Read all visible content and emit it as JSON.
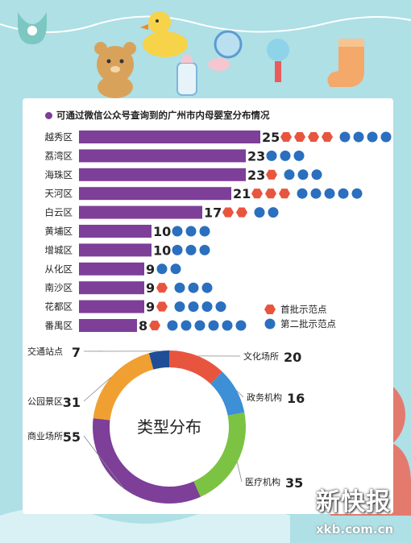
{
  "chart_data": [
    {
      "type": "bar",
      "orientation": "horizontal",
      "title": "可通过微信公众号查询到的广州市内母婴室分布情况",
      "categories": [
        "越秀区",
        "荔湾区",
        "海珠区",
        "天河区",
        "白云区",
        "黄埔区",
        "增城区",
        "从化区",
        "南沙区",
        "花都区",
        "番禺区"
      ],
      "values": [
        25,
        23,
        23,
        21,
        17,
        10,
        10,
        9,
        9,
        9,
        8
      ],
      "bar_color": "#7d3f98",
      "markers": [
        {
          "first": 4,
          "second": 4
        },
        {
          "first": 0,
          "second": 3
        },
        {
          "first": 1,
          "second": 3
        },
        {
          "first": 3,
          "second": 5
        },
        {
          "first": 2,
          "second": 2
        },
        {
          "first": 0,
          "second": 3
        },
        {
          "first": 0,
          "second": 3
        },
        {
          "first": 0,
          "second": 2
        },
        {
          "first": 1,
          "second": 3
        },
        {
          "first": 1,
          "second": 4
        },
        {
          "first": 1,
          "second": 6
        }
      ],
      "legend": [
        {
          "name": "首批示范点",
          "color": "#e8553f",
          "shape": "hexagon"
        },
        {
          "name": "第二批示范点",
          "color": "#2b6fbf",
          "shape": "circle"
        }
      ],
      "legend_position": "bottom-right"
    },
    {
      "type": "pie",
      "style": "donut",
      "center_label": "类型分布",
      "slices": [
        {
          "name": "文化场所",
          "value": 20,
          "color": "#e8553f"
        },
        {
          "name": "政务机构",
          "value": 16,
          "color": "#3d8fd6"
        },
        {
          "name": "医疗机构",
          "value": 35,
          "color": "#7cc243"
        },
        {
          "name": "商业场所",
          "value": 55,
          "color": "#7d3f98"
        },
        {
          "name": "公园景区",
          "value": 31,
          "color": "#f0a030"
        },
        {
          "name": "交通站点",
          "value": 7,
          "color": "#1f4e96"
        }
      ]
    }
  ],
  "branding": {
    "name": "新快报",
    "site": "xkb.com.cn"
  }
}
